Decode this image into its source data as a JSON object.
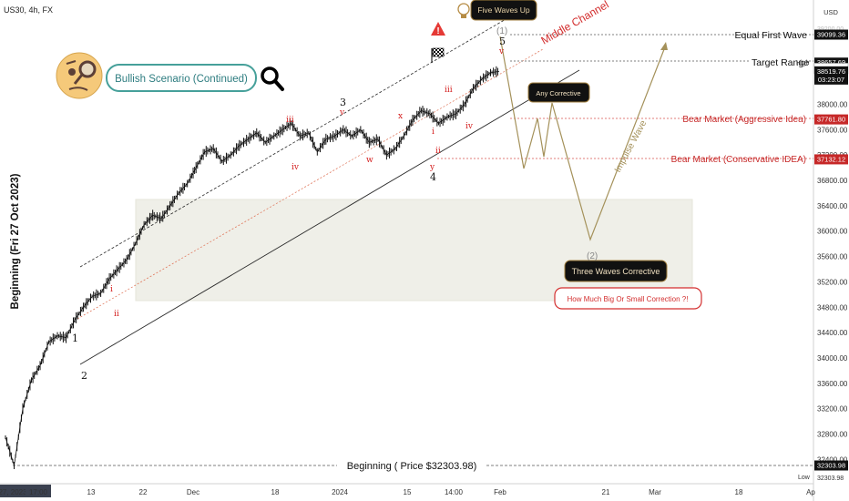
{
  "symbol": "US30, 4h, FX",
  "currency": "USD",
  "chart_data": {
    "type": "line",
    "title": "Bullish Scenario (Continued)",
    "y_axis_label": "Beginning (Fri 27 Oct 2023)",
    "ylim": [
      32100,
      39300
    ],
    "x_ticks": [
      "27, 2023",
      "17:00",
      "13",
      "22",
      "Dec",
      "18",
      "2024",
      "15",
      "14:00",
      "Feb",
      "21",
      "Mar",
      "18",
      "Ap"
    ],
    "y_ticks": [
      "39200.00",
      "38400.00",
      "38000.00",
      "37600.00",
      "37200.00",
      "36800.00",
      "36400.00",
      "36000.00",
      "35600.00",
      "35200.00",
      "34800.00",
      "34400.00",
      "34000.00",
      "33600.00",
      "33200.00",
      "32800.00",
      "32400.00"
    ],
    "series": [
      {
        "values": [
          32750,
          32303.98,
          33200,
          33650,
          33880,
          34250,
          34350,
          34320,
          34600,
          34800,
          34970,
          35020,
          35250,
          35400,
          35550,
          35800,
          36100,
          36250,
          36200,
          36400,
          36600,
          36750,
          37000,
          37250,
          37300,
          37100,
          37200,
          37350,
          37450,
          37550,
          37400,
          37500,
          37600,
          37700,
          37500,
          37550,
          37250,
          37450,
          37500,
          37600,
          37500,
          37600,
          37400,
          37450,
          37200,
          37300,
          37500,
          37750,
          37900,
          37850,
          37700,
          37800,
          37850,
          38000,
          38250,
          38400,
          38500,
          38519.76
        ]
      }
    ],
    "price_levels": [
      {
        "label": "Equal First Wave",
        "value": "39099.36",
        "price": 39099.36,
        "color": "#111111"
      },
      {
        "label": "",
        "value": "38657.69",
        "price": 38657.69,
        "color": "#111111"
      },
      {
        "label": "Target Range",
        "value": "38564.76",
        "price": 38564.76,
        "color": "#ffffff"
      },
      {
        "label": "",
        "value": "38519.76",
        "sub": "03:23:07",
        "price": 38519.76,
        "color": "#111111"
      },
      {
        "label": "Bear Market (Aggressive Idea)",
        "value": "37761.80",
        "price": 37761.8,
        "color": "#c62828"
      },
      {
        "label": "Bear Market (Conservative IDEA)",
        "value": "37132.12",
        "price": 37132.12,
        "color": "#c62828"
      },
      {
        "label": "Beginning ( Price $32303.98)",
        "value": "32303.98",
        "price": 32303.98,
        "color": "#111111"
      }
    ],
    "axis_top_partial": "39200.00",
    "high_label": "High",
    "low_label": "Low",
    "low_value": "32303.98",
    "wave_labels_major": [
      "1",
      "2",
      "3",
      "4",
      "5",
      "(1)",
      "(2)"
    ],
    "wave_labels_minor": [
      "i",
      "ii",
      "iii",
      "iv",
      "v",
      "w",
      "x",
      "y"
    ],
    "annotations": {
      "five_waves_up": "Five Waves Up",
      "middle_channel": "Middle Channel",
      "any_corrective": "Any Corrective",
      "impulse_wave": "Impulse Wave",
      "three_waves_corrective": "Three Waves Corrective",
      "how_much": "How Much Big Or Small Correction ?!"
    }
  }
}
